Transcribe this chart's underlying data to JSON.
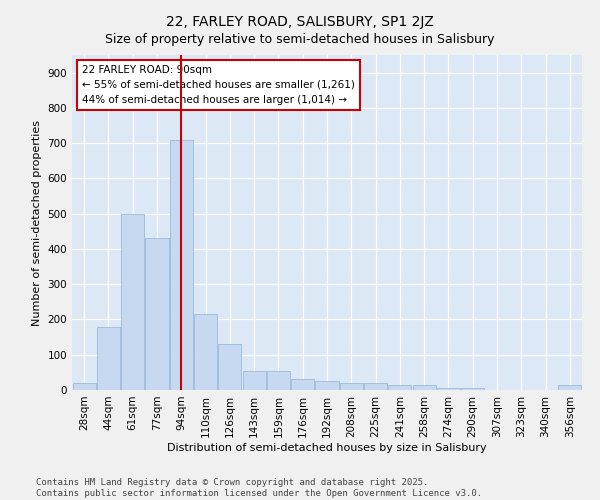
{
  "title": "22, FARLEY ROAD, SALISBURY, SP1 2JZ",
  "subtitle": "Size of property relative to semi-detached houses in Salisbury",
  "xlabel": "Distribution of semi-detached houses by size in Salisbury",
  "ylabel": "Number of semi-detached properties",
  "categories": [
    "28sqm",
    "44sqm",
    "61sqm",
    "77sqm",
    "94sqm",
    "110sqm",
    "126sqm",
    "143sqm",
    "159sqm",
    "176sqm",
    "192sqm",
    "208sqm",
    "225sqm",
    "241sqm",
    "258sqm",
    "274sqm",
    "290sqm",
    "307sqm",
    "323sqm",
    "340sqm",
    "356sqm"
  ],
  "values": [
    20,
    180,
    500,
    430,
    710,
    215,
    130,
    55,
    55,
    30,
    25,
    20,
    20,
    15,
    15,
    5,
    5,
    0,
    0,
    0,
    15
  ],
  "bar_color": "#c6d9f0",
  "bar_edge_color": "#9bbcd8",
  "red_line_x": 4.0,
  "red_line_label": "22 FARLEY ROAD: 90sqm",
  "annotation_smaller": "← 55% of semi-detached houses are smaller (1,261)",
  "annotation_larger": "44% of semi-detached houses are larger (1,014) →",
  "box_edge_color": "#cc0000",
  "ylim": [
    0,
    950
  ],
  "yticks": [
    0,
    100,
    200,
    300,
    400,
    500,
    600,
    700,
    800,
    900
  ],
  "footnote1": "Contains HM Land Registry data © Crown copyright and database right 2025.",
  "footnote2": "Contains public sector information licensed under the Open Government Licence v3.0.",
  "bg_color": "#dce8f5",
  "grid_color": "#ffffff",
  "title_fontsize": 10,
  "label_fontsize": 8,
  "tick_fontsize": 7.5,
  "annotation_fontsize": 7.5,
  "footnote_fontsize": 6.5
}
